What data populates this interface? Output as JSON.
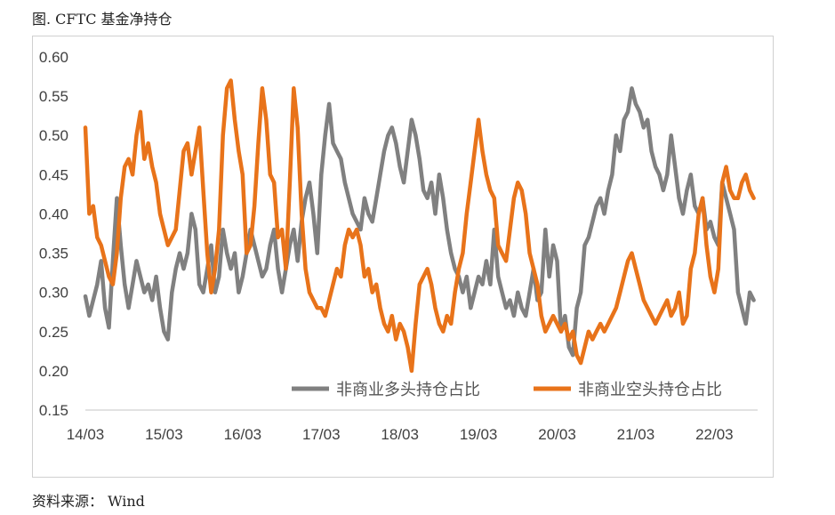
{
  "figure": {
    "title": "图. CFTC 基金净持仓",
    "source": "资料来源：  Wind"
  },
  "chart_data": {
    "type": "line",
    "title": "",
    "xlabel": "",
    "ylabel": "",
    "ylim": [
      0.15,
      0.6
    ],
    "yticks": [
      "0.15",
      "0.20",
      "0.25",
      "0.30",
      "0.35",
      "0.40",
      "0.45",
      "0.50",
      "0.55",
      "0.60"
    ],
    "xticks": [
      "14/03",
      "15/03",
      "16/03",
      "17/03",
      "18/03",
      "19/03",
      "20/03",
      "21/03",
      "22/03"
    ],
    "xlim": [
      2014.0,
      2022.55
    ],
    "grid": false,
    "legend": "bottom-right",
    "series": [
      {
        "name": "非商业多头持仓占比",
        "color": "#808080",
        "x": [
          2014.0,
          2014.05,
          2014.1,
          2014.15,
          2014.2,
          2014.25,
          2014.3,
          2014.35,
          2014.4,
          2014.45,
          2014.5,
          2014.55,
          2014.6,
          2014.65,
          2014.7,
          2014.75,
          2014.8,
          2014.85,
          2014.9,
          2014.95,
          2015.0,
          2015.05,
          2015.1,
          2015.15,
          2015.2,
          2015.25,
          2015.3,
          2015.35,
          2015.4,
          2015.45,
          2015.5,
          2015.55,
          2015.6,
          2015.65,
          2015.7,
          2015.75,
          2015.8,
          2015.85,
          2015.9,
          2015.95,
          2016.0,
          2016.05,
          2016.1,
          2016.15,
          2016.2,
          2016.25,
          2016.3,
          2016.35,
          2016.4,
          2016.45,
          2016.5,
          2016.55,
          2016.6,
          2016.65,
          2016.7,
          2016.75,
          2016.8,
          2016.85,
          2016.9,
          2016.95,
          2017.0,
          2017.05,
          2017.1,
          2017.15,
          2017.2,
          2017.25,
          2017.3,
          2017.35,
          2017.4,
          2017.45,
          2017.5,
          2017.55,
          2017.6,
          2017.65,
          2017.7,
          2017.75,
          2017.8,
          2017.85,
          2017.9,
          2017.95,
          2018.0,
          2018.05,
          2018.1,
          2018.15,
          2018.2,
          2018.25,
          2018.3,
          2018.35,
          2018.4,
          2018.45,
          2018.5,
          2018.55,
          2018.6,
          2018.65,
          2018.7,
          2018.75,
          2018.8,
          2018.85,
          2018.9,
          2018.95,
          2019.0,
          2019.05,
          2019.1,
          2019.15,
          2019.2,
          2019.25,
          2019.3,
          2019.35,
          2019.4,
          2019.45,
          2019.5,
          2019.55,
          2019.6,
          2019.65,
          2019.7,
          2019.75,
          2019.8,
          2019.85,
          2019.9,
          2019.95,
          2020.0,
          2020.05,
          2020.1,
          2020.15,
          2020.2,
          2020.25,
          2020.3,
          2020.35,
          2020.4,
          2020.45,
          2020.5,
          2020.55,
          2020.6,
          2020.65,
          2020.7,
          2020.75,
          2020.8,
          2020.85,
          2020.9,
          2020.95,
          2021.0,
          2021.05,
          2021.1,
          2021.15,
          2021.2,
          2021.25,
          2021.3,
          2021.35,
          2021.4,
          2021.45,
          2021.5,
          2021.55,
          2021.6,
          2021.65,
          2021.7,
          2021.75,
          2021.8,
          2021.85,
          2021.9,
          2021.95,
          2022.0,
          2022.05,
          2022.1,
          2022.15,
          2022.2,
          2022.25,
          2022.3,
          2022.35,
          2022.4,
          2022.45,
          2022.5
        ],
        "values": [
          0.295,
          0.27,
          0.29,
          0.31,
          0.34,
          0.28,
          0.255,
          0.34,
          0.42,
          0.36,
          0.31,
          0.28,
          0.31,
          0.34,
          0.32,
          0.3,
          0.31,
          0.29,
          0.32,
          0.28,
          0.25,
          0.24,
          0.3,
          0.33,
          0.35,
          0.33,
          0.35,
          0.4,
          0.38,
          0.31,
          0.3,
          0.33,
          0.36,
          0.3,
          0.32,
          0.38,
          0.35,
          0.33,
          0.35,
          0.3,
          0.32,
          0.35,
          0.38,
          0.36,
          0.34,
          0.32,
          0.33,
          0.36,
          0.38,
          0.33,
          0.3,
          0.33,
          0.36,
          0.38,
          0.34,
          0.39,
          0.42,
          0.44,
          0.4,
          0.35,
          0.45,
          0.5,
          0.54,
          0.49,
          0.48,
          0.47,
          0.44,
          0.42,
          0.4,
          0.39,
          0.38,
          0.42,
          0.4,
          0.39,
          0.42,
          0.45,
          0.48,
          0.5,
          0.51,
          0.49,
          0.46,
          0.44,
          0.48,
          0.52,
          0.5,
          0.47,
          0.43,
          0.42,
          0.44,
          0.4,
          0.45,
          0.42,
          0.38,
          0.35,
          0.33,
          0.32,
          0.3,
          0.32,
          0.28,
          0.3,
          0.32,
          0.31,
          0.34,
          0.31,
          0.38,
          0.32,
          0.3,
          0.28,
          0.29,
          0.27,
          0.3,
          0.28,
          0.27,
          0.3,
          0.33,
          0.29,
          0.3,
          0.38,
          0.32,
          0.36,
          0.34,
          0.25,
          0.27,
          0.23,
          0.22,
          0.28,
          0.3,
          0.36,
          0.37,
          0.39,
          0.41,
          0.42,
          0.4,
          0.43,
          0.45,
          0.5,
          0.48,
          0.52,
          0.53,
          0.56,
          0.54,
          0.53,
          0.51,
          0.52,
          0.48,
          0.46,
          0.45,
          0.43,
          0.45,
          0.5,
          0.46,
          0.42,
          0.4,
          0.43,
          0.45,
          0.41,
          0.4,
          0.42,
          0.38,
          0.39,
          0.37,
          0.36,
          0.44,
          0.42,
          0.4,
          0.38,
          0.3,
          0.28,
          0.26,
          0.3,
          0.29
        ]
      },
      {
        "name": "非商业空头持仓占比",
        "color": "#E8731A",
        "x": [
          2014.0,
          2014.05,
          2014.1,
          2014.15,
          2014.2,
          2014.25,
          2014.3,
          2014.35,
          2014.4,
          2014.45,
          2014.5,
          2014.55,
          2014.6,
          2014.65,
          2014.7,
          2014.75,
          2014.8,
          2014.85,
          2014.9,
          2014.95,
          2015.0,
          2015.05,
          2015.1,
          2015.15,
          2015.2,
          2015.25,
          2015.3,
          2015.35,
          2015.4,
          2015.45,
          2015.5,
          2015.55,
          2015.6,
          2015.65,
          2015.7,
          2015.75,
          2015.8,
          2015.85,
          2015.9,
          2015.95,
          2016.0,
          2016.05,
          2016.1,
          2016.15,
          2016.2,
          2016.25,
          2016.3,
          2016.35,
          2016.4,
          2016.45,
          2016.5,
          2016.55,
          2016.6,
          2016.65,
          2016.7,
          2016.75,
          2016.8,
          2016.85,
          2016.9,
          2016.95,
          2017.0,
          2017.05,
          2017.1,
          2017.15,
          2017.2,
          2017.25,
          2017.3,
          2017.35,
          2017.4,
          2017.45,
          2017.5,
          2017.55,
          2017.6,
          2017.65,
          2017.7,
          2017.75,
          2017.8,
          2017.85,
          2017.9,
          2017.95,
          2018.0,
          2018.05,
          2018.1,
          2018.15,
          2018.2,
          2018.25,
          2018.3,
          2018.35,
          2018.4,
          2018.45,
          2018.5,
          2018.55,
          2018.6,
          2018.65,
          2018.7,
          2018.75,
          2018.8,
          2018.85,
          2018.9,
          2018.95,
          2019.0,
          2019.05,
          2019.1,
          2019.15,
          2019.2,
          2019.25,
          2019.3,
          2019.35,
          2019.4,
          2019.45,
          2019.5,
          2019.55,
          2019.6,
          2019.65,
          2019.7,
          2019.75,
          2019.8,
          2019.85,
          2019.9,
          2019.95,
          2020.0,
          2020.05,
          2020.1,
          2020.15,
          2020.2,
          2020.25,
          2020.3,
          2020.35,
          2020.4,
          2020.45,
          2020.5,
          2020.55,
          2020.6,
          2020.65,
          2020.7,
          2020.75,
          2020.8,
          2020.85,
          2020.9,
          2020.95,
          2021.0,
          2021.05,
          2021.1,
          2021.15,
          2021.2,
          2021.25,
          2021.3,
          2021.35,
          2021.4,
          2021.45,
          2021.5,
          2021.55,
          2021.6,
          2021.65,
          2021.7,
          2021.75,
          2021.8,
          2021.85,
          2021.9,
          2021.95,
          2022.0,
          2022.05,
          2022.1,
          2022.15,
          2022.2,
          2022.25,
          2022.3,
          2022.35,
          2022.4,
          2022.45,
          2022.5
        ],
        "values": [
          0.51,
          0.4,
          0.41,
          0.37,
          0.36,
          0.34,
          0.32,
          0.31,
          0.35,
          0.42,
          0.46,
          0.47,
          0.45,
          0.5,
          0.53,
          0.47,
          0.49,
          0.46,
          0.44,
          0.4,
          0.38,
          0.36,
          0.37,
          0.38,
          0.43,
          0.48,
          0.49,
          0.45,
          0.48,
          0.51,
          0.43,
          0.35,
          0.3,
          0.33,
          0.38,
          0.5,
          0.56,
          0.57,
          0.52,
          0.48,
          0.45,
          0.35,
          0.36,
          0.41,
          0.49,
          0.56,
          0.52,
          0.45,
          0.44,
          0.37,
          0.38,
          0.33,
          0.44,
          0.56,
          0.51,
          0.4,
          0.33,
          0.3,
          0.29,
          0.28,
          0.28,
          0.27,
          0.29,
          0.31,
          0.33,
          0.32,
          0.36,
          0.38,
          0.37,
          0.38,
          0.36,
          0.32,
          0.33,
          0.3,
          0.31,
          0.28,
          0.26,
          0.25,
          0.27,
          0.24,
          0.26,
          0.25,
          0.23,
          0.2,
          0.26,
          0.31,
          0.32,
          0.33,
          0.31,
          0.28,
          0.26,
          0.25,
          0.27,
          0.26,
          0.3,
          0.33,
          0.35,
          0.4,
          0.44,
          0.48,
          0.52,
          0.48,
          0.45,
          0.43,
          0.42,
          0.36,
          0.35,
          0.34,
          0.38,
          0.42,
          0.44,
          0.43,
          0.4,
          0.35,
          0.33,
          0.31,
          0.27,
          0.25,
          0.26,
          0.27,
          0.26,
          0.25,
          0.26,
          0.24,
          0.25,
          0.22,
          0.21,
          0.23,
          0.25,
          0.24,
          0.25,
          0.26,
          0.25,
          0.26,
          0.27,
          0.28,
          0.3,
          0.32,
          0.34,
          0.35,
          0.33,
          0.31,
          0.29,
          0.28,
          0.27,
          0.26,
          0.27,
          0.28,
          0.29,
          0.27,
          0.28,
          0.3,
          0.26,
          0.27,
          0.33,
          0.35,
          0.4,
          0.42,
          0.36,
          0.32,
          0.3,
          0.33,
          0.44,
          0.46,
          0.43,
          0.42,
          0.42,
          0.44,
          0.45,
          0.43,
          0.42
        ]
      }
    ]
  }
}
